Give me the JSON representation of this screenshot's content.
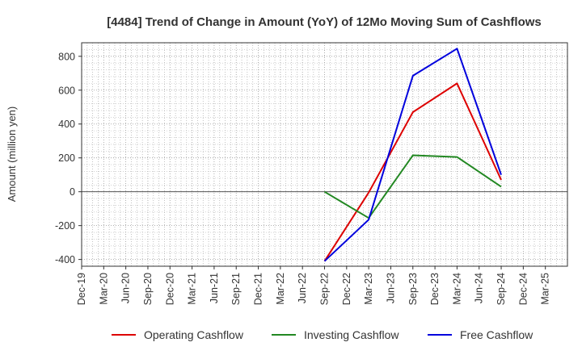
{
  "chart_data": {
    "type": "line",
    "title": "[4484]  Trend of Change in Amount (YoY) of 12Mo Moving Sum of Cashflows",
    "xlabel": "",
    "ylabel": "Amount (million yen)",
    "categories": [
      "Dec-19",
      "Mar-20",
      "Jun-20",
      "Sep-20",
      "Dec-20",
      "Mar-21",
      "Jun-21",
      "Sep-21",
      "Dec-21",
      "Mar-22",
      "Jun-22",
      "Sep-22",
      "Dec-22",
      "Mar-23",
      "Jun-23",
      "Sep-23",
      "Dec-23",
      "Mar-24",
      "Jun-24",
      "Sep-24",
      "Dec-24",
      "Mar-25"
    ],
    "yticks": [
      -400,
      -200,
      0,
      200,
      400,
      600,
      800
    ],
    "ylim": [
      -440,
      880
    ],
    "grid": true,
    "legend_position": "bottom",
    "series": [
      {
        "name": "Operating Cashflow",
        "color": "#dd0000",
        "values": [
          null,
          null,
          null,
          null,
          null,
          null,
          null,
          null,
          null,
          null,
          null,
          -410,
          null,
          -5,
          null,
          470,
          null,
          640,
          null,
          70,
          null,
          null
        ]
      },
      {
        "name": "Investing Cashflow",
        "color": "#228822",
        "values": [
          null,
          null,
          null,
          null,
          null,
          null,
          null,
          null,
          null,
          null,
          null,
          0,
          null,
          -155,
          null,
          215,
          null,
          205,
          null,
          30,
          null,
          null
        ]
      },
      {
        "name": "Free Cashflow",
        "color": "#0000dd",
        "values": [
          null,
          null,
          null,
          null,
          null,
          null,
          null,
          null,
          null,
          null,
          null,
          -410,
          null,
          -165,
          null,
          685,
          null,
          845,
          null,
          100,
          null,
          null
        ]
      }
    ]
  }
}
